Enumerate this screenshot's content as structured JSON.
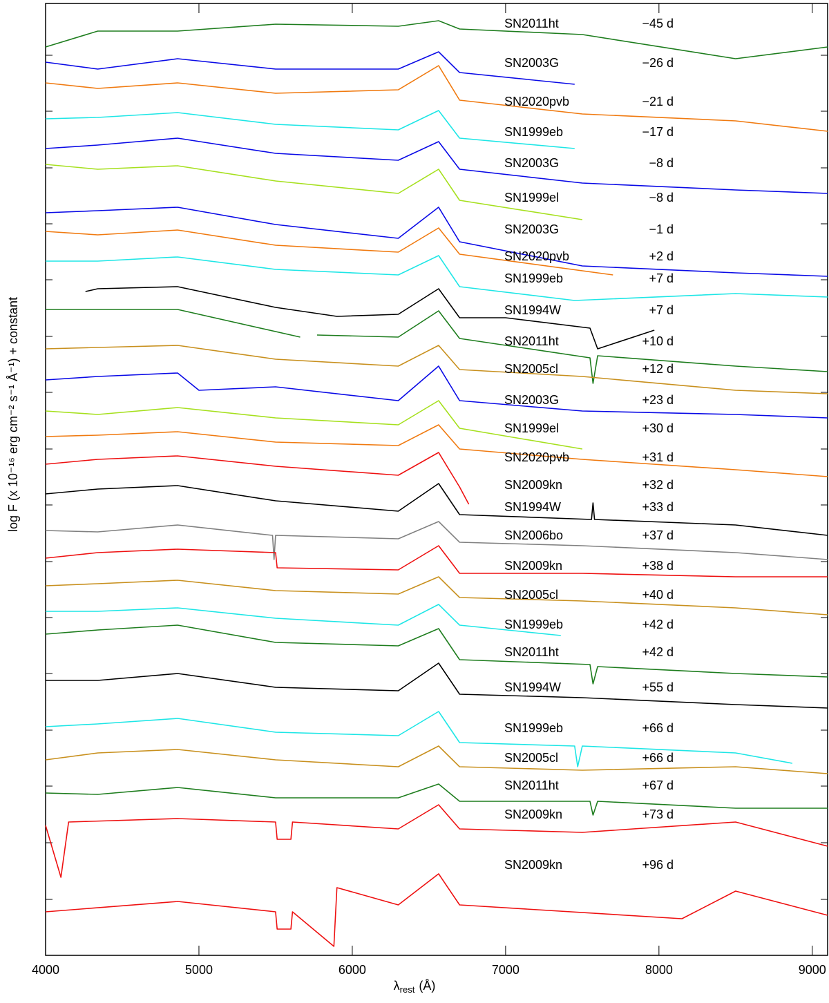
{
  "chart_data": {
    "type": "line",
    "x_label": {
      "symbol": "λ",
      "subscript": "rest",
      "unit": "(Å)"
    },
    "y_label": "log F (x 10⁻¹⁶ erg cm⁻² s⁻¹ Å⁻¹)  + constant",
    "xlim": [
      4000,
      9100
    ],
    "xticks": [
      4000,
      5000,
      6000,
      7000,
      8000,
      9000
    ],
    "ylim": [
      0,
      1378
    ],
    "yticks": [
      81,
      163,
      245,
      326,
      408,
      489,
      570,
      652,
      733,
      815,
      896,
      978,
      1059,
      1140,
      1222,
      1303
    ],
    "series": [
      {
        "name": "SN2011ht",
        "phase": "−45  d",
        "color": "#1e7d1e",
        "x": [
          4000,
          4340,
          4861,
          5500,
          6300,
          6563,
          6700,
          7500,
          8500,
          9100
        ],
        "values": [
          1315,
          1338,
          1338,
          1348,
          1345,
          1353,
          1341,
          1333,
          1298,
          1315
        ]
      },
      {
        "name": "SN2003G",
        "phase": "−26  d",
        "color": "#0a0ae6",
        "x": [
          4000,
          4340,
          4861,
          5500,
          6300,
          6563,
          6700,
          7450
        ],
        "values": [
          1293,
          1283,
          1298,
          1283,
          1283,
          1308,
          1278,
          1261
        ]
      },
      {
        "name": "SN2020pvb",
        "phase": "−21  d",
        "color": "#f07a10",
        "x": [
          4000,
          4340,
          4861,
          5500,
          6300,
          6563,
          6700,
          7500,
          8500,
          9100
        ],
        "values": [
          1263,
          1255,
          1263,
          1248,
          1253,
          1288,
          1238,
          1218,
          1208,
          1193
        ]
      },
      {
        "name": "SN1999eb",
        "phase": "−17  d",
        "color": "#1ee6e6",
        "x": [
          4000,
          4340,
          4861,
          5500,
          6300,
          6563,
          6700,
          7450
        ],
        "values": [
          1211,
          1213,
          1220,
          1203,
          1195,
          1223,
          1183,
          1168
        ]
      },
      {
        "name": "SN2003G",
        "phase": "−8  d",
        "color": "#0a0ae6",
        "x": [
          4000,
          4340,
          4861,
          5500,
          6300,
          6563,
          6700,
          7500,
          8500,
          9100
        ],
        "values": [
          1168,
          1173,
          1183,
          1161,
          1151,
          1178,
          1138,
          1118,
          1108,
          1103
        ]
      },
      {
        "name": "SN1999el",
        "phase": "−8  d",
        "color": "#a6e01e",
        "x": [
          4000,
          4340,
          4861,
          5500,
          6300,
          6563,
          6700,
          7500
        ],
        "values": [
          1145,
          1138,
          1143,
          1121,
          1103,
          1138,
          1093,
          1065
        ]
      },
      {
        "name": "SN2003G",
        "phase": "−1  d",
        "color": "#0a0ae6",
        "x": [
          4000,
          4340,
          4861,
          5500,
          6300,
          6563,
          6700,
          7500,
          8500,
          9100
        ],
        "values": [
          1075,
          1078,
          1083,
          1058,
          1038,
          1083,
          1033,
          998,
          988,
          983
        ]
      },
      {
        "name": "SN2020pvb",
        "phase": "+2  d",
        "color": "#f07a10",
        "x": [
          4000,
          4340,
          4861,
          5500,
          6300,
          6563,
          6700,
          7700
        ],
        "values": [
          1048,
          1043,
          1050,
          1028,
          1018,
          1053,
          1015,
          985
        ]
      },
      {
        "name": "SN1999eb",
        "phase": "+7  d",
        "color": "#1ee6e6",
        "x": [
          4000,
          4340,
          4861,
          5500,
          6300,
          6563,
          6700,
          7450,
          8500,
          9100
        ],
        "values": [
          1005,
          1005,
          1011,
          993,
          985,
          1013,
          968,
          948,
          958,
          953
        ]
      },
      {
        "name": "SN1994W",
        "phase": "+7  d",
        "color": "#000000",
        "x": [
          4260,
          4340,
          4861,
          5500,
          5900,
          6300,
          6563,
          6700,
          7000,
          7550,
          7600,
          7970
        ],
        "values": [
          961,
          965,
          968,
          938,
          925,
          928,
          965,
          923,
          923,
          908,
          878,
          905
        ]
      },
      {
        "name": "SN2011ht",
        "phase": "+10  d",
        "color": "#1e7d1e",
        "x": [
          4000,
          4340,
          4861,
          5660,
          5700,
          5770,
          6300,
          6563,
          6700,
          7550,
          7570,
          7600,
          8500,
          9100
        ],
        "values": [
          935,
          935,
          935,
          895,
          null,
          898,
          895,
          933,
          893,
          865,
          828,
          868,
          853,
          845
        ]
      },
      {
        "name": "SN2005cl",
        "phase": "+12  d",
        "color": "#c8901e",
        "x": [
          4000,
          4340,
          4861,
          5500,
          6300,
          6563,
          6700,
          7500,
          8500,
          9100
        ],
        "values": [
          878,
          880,
          883,
          863,
          853,
          883,
          848,
          838,
          818,
          813
        ]
      },
      {
        "name": "SN2003G",
        "phase": "+23  d",
        "color": "#0a0ae6",
        "x": [
          4000,
          4340,
          4861,
          5000,
          5500,
          6300,
          6563,
          6700,
          7500,
          8500,
          9100
        ],
        "values": [
          833,
          838,
          843,
          818,
          823,
          803,
          853,
          803,
          788,
          783,
          778
        ]
      },
      {
        "name": "SN1999el",
        "phase": "+30  d",
        "color": "#a6e01e",
        "x": [
          4000,
          4340,
          4861,
          5500,
          6300,
          6563,
          6700,
          7500
        ],
        "values": [
          788,
          783,
          793,
          778,
          768,
          803,
          763,
          733
        ]
      },
      {
        "name": "SN2020pvb",
        "phase": "+31  d",
        "color": "#f07a10",
        "x": [
          4000,
          4340,
          4861,
          5500,
          6300,
          6563,
          6700,
          7500,
          8500,
          9100
        ],
        "values": [
          751,
          753,
          758,
          743,
          738,
          768,
          733,
          718,
          703,
          693
        ]
      },
      {
        "name": "SN2009kn",
        "phase": "+32  d",
        "color": "#ee1111",
        "x": [
          4000,
          4340,
          4861,
          5500,
          6300,
          6563,
          6700,
          6760
        ],
        "values": [
          711,
          718,
          723,
          708,
          695,
          728,
          678,
          653
        ]
      },
      {
        "name": "SN1994W",
        "phase": "+33  d",
        "color": "#000000",
        "x": [
          4000,
          4340,
          4861,
          5500,
          6300,
          6563,
          6700,
          7560,
          7570,
          7580,
          8500,
          9100
        ],
        "values": [
          668,
          675,
          680,
          658,
          643,
          683,
          638,
          631,
          655,
          631,
          623,
          608
        ]
      },
      {
        "name": "SN2006bo",
        "phase": "+37  d",
        "color": "#808080",
        "x": [
          4000,
          4340,
          4861,
          5480,
          5490,
          5500,
          6300,
          6563,
          6700,
          7500,
          8500,
          9100
        ],
        "values": [
          615,
          613,
          623,
          608,
          573,
          608,
          603,
          628,
          598,
          593,
          583,
          573
        ]
      },
      {
        "name": "SN2009kn",
        "phase": "+38  d",
        "color": "#ee1111",
        "x": [
          4000,
          4340,
          4861,
          5500,
          5510,
          6300,
          6563,
          6700,
          7500,
          8500,
          9100
        ],
        "values": [
          575,
          583,
          588,
          583,
          561,
          558,
          593,
          553,
          553,
          548,
          548
        ]
      },
      {
        "name": "SN2005cl",
        "phase": "+40  d",
        "color": "#c8901e",
        "x": [
          4000,
          4340,
          4861,
          5500,
          6300,
          6563,
          6700,
          7500,
          8500,
          9100
        ],
        "values": [
          535,
          538,
          543,
          528,
          523,
          548,
          518,
          513,
          503,
          493
        ]
      },
      {
        "name": "SN1999eb",
        "phase": "+42  d",
        "color": "#1ee6e6",
        "x": [
          4000,
          4340,
          4861,
          5500,
          6300,
          6563,
          6700,
          7360
        ],
        "values": [
          498,
          498,
          503,
          488,
          478,
          508,
          478,
          463
        ]
      },
      {
        "name": "SN2011ht",
        "phase": "+42  d",
        "color": "#1e7d1e",
        "x": [
          4000,
          4340,
          4861,
          5500,
          6300,
          6563,
          6700,
          7550,
          7570,
          7600,
          8500,
          9100
        ],
        "values": [
          465,
          471,
          478,
          453,
          448,
          473,
          428,
          421,
          393,
          418,
          408,
          403
        ]
      },
      {
        "name": "SN1994W",
        "phase": "+55  d",
        "color": "#000000",
        "x": [
          4000,
          4340,
          4861,
          5500,
          6300,
          6563,
          6700,
          7500,
          8500,
          9100
        ],
        "values": [
          398,
          398,
          408,
          388,
          383,
          423,
          378,
          373,
          363,
          358
        ]
      },
      {
        "name": "SN1999eb",
        "phase": "+66  d",
        "color": "#1ee6e6",
        "x": [
          4000,
          4340,
          4861,
          5500,
          6300,
          6563,
          6700,
          7450,
          7470,
          7500,
          8500,
          8870
        ],
        "values": [
          331,
          335,
          343,
          323,
          318,
          353,
          308,
          303,
          273,
          303,
          293,
          278
        ]
      },
      {
        "name": "SN2005cl",
        "phase": "+66  d",
        "color": "#c8901e",
        "x": [
          4000,
          4340,
          4861,
          5500,
          6300,
          6563,
          6700,
          7500,
          8500,
          9100
        ],
        "values": [
          283,
          293,
          298,
          283,
          273,
          303,
          273,
          268,
          273,
          263
        ]
      },
      {
        "name": "SN2011ht",
        "phase": "+67  d",
        "color": "#1e7d1e",
        "x": [
          4000,
          4340,
          4861,
          5500,
          6300,
          6563,
          6700,
          7550,
          7570,
          7600,
          8500,
          9100
        ],
        "values": [
          235,
          233,
          243,
          228,
          228,
          248,
          223,
          223,
          203,
          223,
          213,
          213
        ]
      },
      {
        "name": "SN2009kn",
        "phase": "+73  d",
        "color": "#ee1111",
        "x": [
          4000,
          4100,
          4150,
          4861,
          5500,
          5510,
          5600,
          5610,
          6300,
          6563,
          6700,
          7500,
          8500,
          9100
        ],
        "values": [
          188,
          113,
          193,
          198,
          193,
          168,
          168,
          193,
          183,
          218,
          183,
          178,
          193,
          158
        ]
      },
      {
        "name": "SN2009kn",
        "phase": "+96  d",
        "color": "#ee1111",
        "x": [
          4000,
          4861,
          5500,
          5510,
          5600,
          5610,
          5880,
          5900,
          6300,
          6563,
          6700,
          8150,
          8500,
          9100
        ],
        "values": [
          63,
          78,
          63,
          38,
          38,
          63,
          13,
          98,
          73,
          118,
          73,
          53,
          93,
          58
        ]
      }
    ]
  }
}
